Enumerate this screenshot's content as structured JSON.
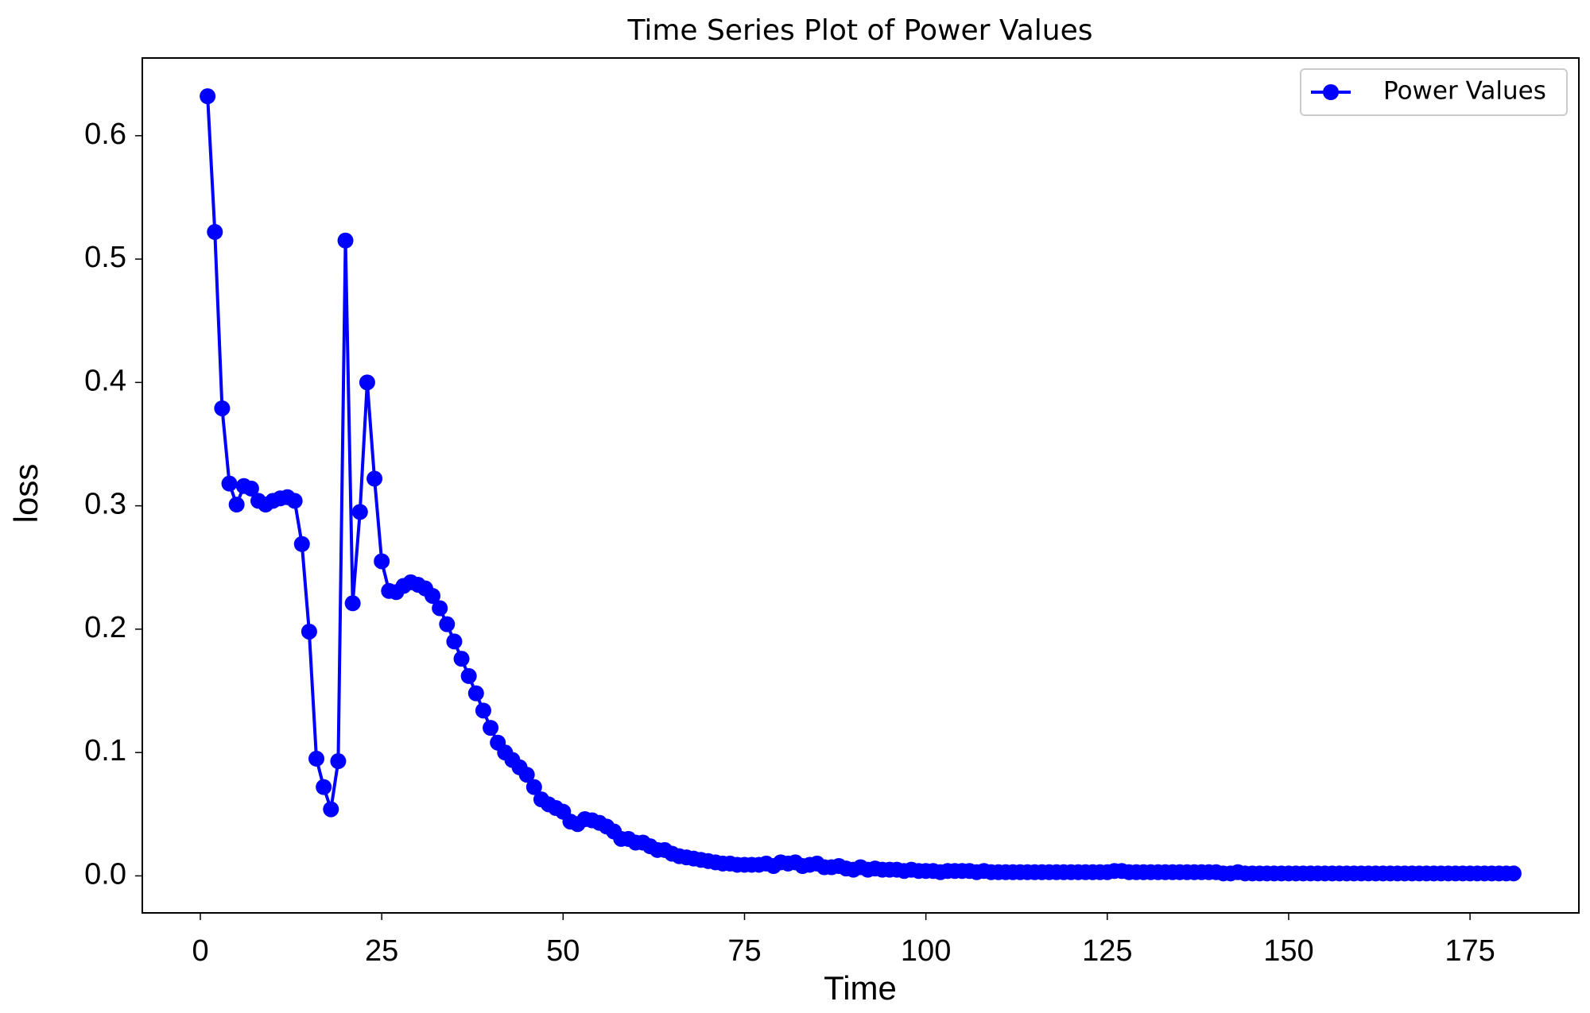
{
  "chart_data": {
    "type": "line",
    "title": "Time Series Plot of Power Values",
    "x_label": "Time",
    "y_label": "loss",
    "x": [
      1,
      2,
      3,
      4,
      5,
      6,
      7,
      8,
      9,
      10,
      11,
      12,
      13,
      14,
      15,
      16,
      17,
      18,
      19,
      20,
      21,
      22,
      23,
      24,
      25,
      26,
      27,
      28,
      29,
      30,
      31,
      32,
      33,
      34,
      35,
      36,
      37,
      38,
      39,
      40,
      41,
      42,
      43,
      44,
      45,
      46,
      47,
      48,
      49,
      50,
      51,
      52,
      53,
      54,
      55,
      56,
      57,
      58,
      59,
      60,
      61,
      62,
      63,
      64,
      65,
      66,
      67,
      68,
      69,
      70,
      71,
      72,
      73,
      74,
      75,
      76,
      77,
      78,
      79,
      80,
      81,
      82,
      83,
      84,
      85,
      86,
      87,
      88,
      89,
      90,
      91,
      92,
      93,
      94,
      95,
      96,
      97,
      98,
      99,
      100,
      101,
      102,
      103,
      104,
      105,
      106,
      107,
      108,
      109,
      110,
      111,
      112,
      113,
      114,
      115,
      116,
      117,
      118,
      119,
      120,
      121,
      122,
      123,
      124,
      125,
      126,
      127,
      128,
      129,
      130,
      131,
      132,
      133,
      134,
      135,
      136,
      137,
      138,
      139,
      140,
      141,
      142,
      143,
      144,
      145,
      146,
      147,
      148,
      149,
      150,
      151,
      152,
      153,
      154,
      155,
      156,
      157,
      158,
      159,
      160,
      161,
      162,
      163,
      164,
      165,
      166,
      167,
      168,
      169,
      170,
      171,
      172,
      173,
      174,
      175,
      176,
      177,
      178,
      179,
      180,
      181
    ],
    "series": [
      {
        "name": "Power Values",
        "color": "#0000ff",
        "values": [
          0.632,
          0.522,
          0.379,
          0.318,
          0.301,
          0.316,
          0.314,
          0.304,
          0.301,
          0.304,
          0.306,
          0.307,
          0.304,
          0.269,
          0.198,
          0.095,
          0.072,
          0.054,
          0.093,
          0.515,
          0.221,
          0.295,
          0.4,
          0.322,
          0.255,
          0.231,
          0.23,
          0.235,
          0.238,
          0.236,
          0.233,
          0.227,
          0.217,
          0.204,
          0.19,
          0.176,
          0.162,
          0.148,
          0.134,
          0.12,
          0.108,
          0.1,
          0.094,
          0.088,
          0.082,
          0.072,
          0.062,
          0.058,
          0.055,
          0.052,
          0.044,
          0.042,
          0.046,
          0.045,
          0.043,
          0.04,
          0.036,
          0.03,
          0.03,
          0.027,
          0.027,
          0.024,
          0.021,
          0.021,
          0.018,
          0.016,
          0.015,
          0.014,
          0.013,
          0.012,
          0.011,
          0.01,
          0.01,
          0.009,
          0.009,
          0.009,
          0.009,
          0.01,
          0.008,
          0.011,
          0.01,
          0.011,
          0.008,
          0.009,
          0.01,
          0.007,
          0.007,
          0.008,
          0.006,
          0.005,
          0.007,
          0.005,
          0.006,
          0.005,
          0.005,
          0.005,
          0.004,
          0.005,
          0.004,
          0.004,
          0.004,
          0.003,
          0.004,
          0.004,
          0.004,
          0.004,
          0.003,
          0.004,
          0.003,
          0.003,
          0.003,
          0.003,
          0.003,
          0.003,
          0.003,
          0.003,
          0.003,
          0.003,
          0.003,
          0.003,
          0.003,
          0.003,
          0.003,
          0.003,
          0.003,
          0.004,
          0.004,
          0.003,
          0.003,
          0.003,
          0.003,
          0.003,
          0.003,
          0.003,
          0.003,
          0.003,
          0.003,
          0.003,
          0.003,
          0.003,
          0.002,
          0.002,
          0.003,
          0.002,
          0.002,
          0.002,
          0.002,
          0.002,
          0.002,
          0.002,
          0.002,
          0.002,
          0.002,
          0.002,
          0.002,
          0.002,
          0.002,
          0.002,
          0.002,
          0.002,
          0.002,
          0.002,
          0.002,
          0.002,
          0.002,
          0.002,
          0.002,
          0.002,
          0.002,
          0.002,
          0.002,
          0.002,
          0.002,
          0.002,
          0.002,
          0.002,
          0.002,
          0.002,
          0.002,
          0.002,
          0.002
        ]
      }
    ],
    "xlim": [
      -8,
      190
    ],
    "ylim": [
      -0.03,
      0.663
    ],
    "xticks": [
      0,
      25,
      50,
      75,
      100,
      125,
      150,
      175
    ],
    "yticks": [
      {
        "value": 0,
        "label": "0.0"
      },
      0.1,
      0.2,
      0.3,
      0.4,
      0.5,
      0.6
    ],
    "grid": false,
    "legend": "upper right",
    "marker": "o"
  }
}
